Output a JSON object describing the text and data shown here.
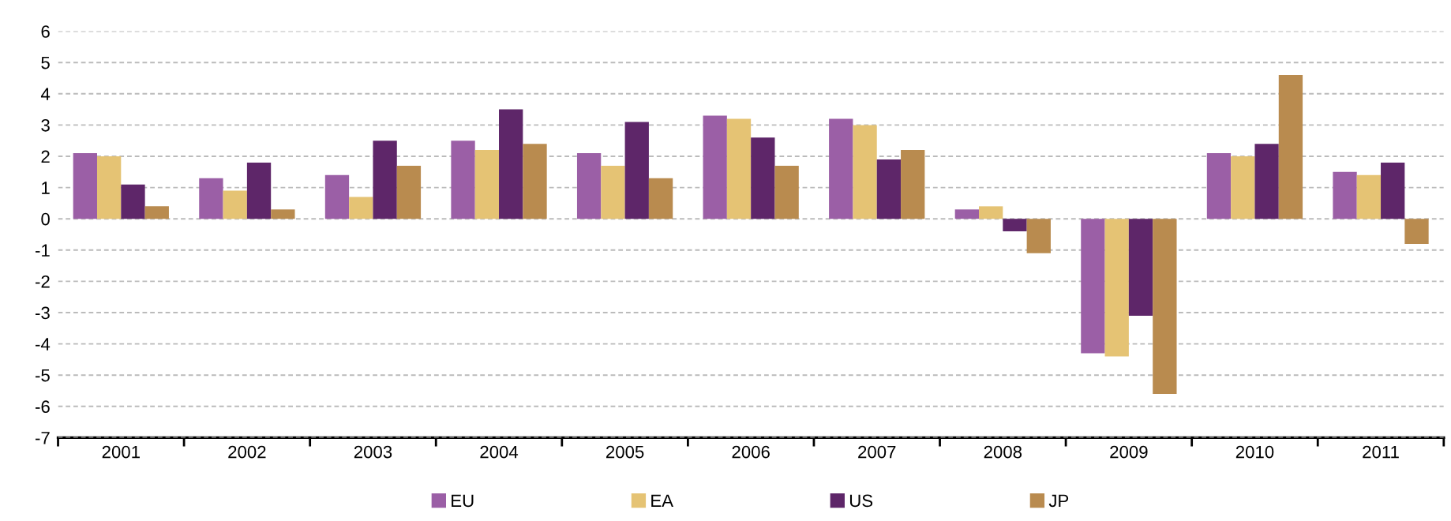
{
  "chart_data": {
    "type": "bar",
    "categories": [
      "2001",
      "2002",
      "2003",
      "2004",
      "2005",
      "2006",
      "2007",
      "2008",
      "2009",
      "2010",
      "2011"
    ],
    "series": [
      {
        "name": "EU",
        "color": "#9b5fa6",
        "values": [
          2.1,
          1.3,
          1.4,
          2.5,
          2.1,
          3.3,
          3.2,
          0.3,
          -4.3,
          2.1,
          1.5
        ]
      },
      {
        "name": "EA",
        "color": "#e5c374",
        "values": [
          2.0,
          0.9,
          0.7,
          2.2,
          1.7,
          3.2,
          3.0,
          0.4,
          -4.4,
          2.0,
          1.4
        ]
      },
      {
        "name": "US",
        "color": "#5e2669",
        "values": [
          1.1,
          1.8,
          2.5,
          3.5,
          3.1,
          2.6,
          1.9,
          -0.4,
          -3.1,
          2.4,
          1.8
        ]
      },
      {
        "name": "JP",
        "color": "#b98b4f",
        "values": [
          0.4,
          0.3,
          1.7,
          2.4,
          1.3,
          1.7,
          2.2,
          -1.1,
          -5.6,
          4.6,
          -0.8
        ]
      }
    ],
    "ylim": [
      -7,
      6
    ],
    "yticks": [
      -7,
      -6,
      -5,
      -4,
      -3,
      -2,
      -1,
      0,
      1,
      2,
      3,
      4,
      5,
      6
    ],
    "grid": "y",
    "legend": "bottom"
  }
}
